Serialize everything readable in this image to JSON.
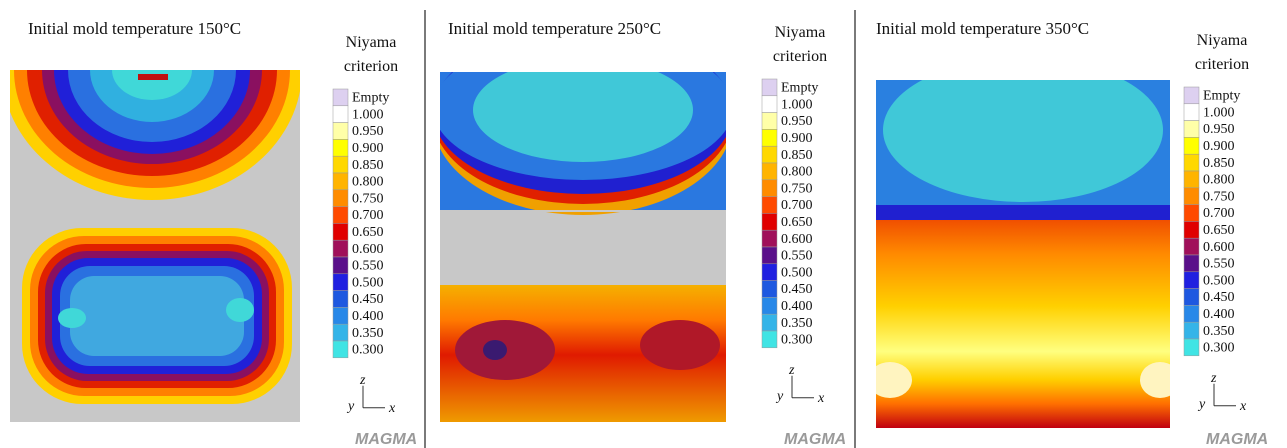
{
  "panels": [
    {
      "title": "Initial mold temperature 150°C",
      "legend": {
        "title_lines": [
          "Niyama",
          "criterion"
        ],
        "labels": [
          "Empty",
          "1.000",
          "0.950",
          "0.900",
          "0.850",
          "0.800",
          "0.750",
          "0.700",
          "0.650",
          "0.600",
          "0.550",
          "0.500",
          "0.450",
          "0.400",
          "0.350",
          "0.300"
        ]
      },
      "axes": {
        "z": "z",
        "y": "y",
        "x": "x"
      },
      "logo": "MAGMA"
    },
    {
      "title": "Initial mold temperature 250°C",
      "legend": {
        "title_lines": [
          "Niyama",
          "criterion"
        ],
        "labels": [
          "Empty",
          "1.000",
          "0.950",
          "0.900",
          "0.850",
          "0.800",
          "0.750",
          "0.700",
          "0.650",
          "0.600",
          "0.550",
          "0.500",
          "0.450",
          "0.400",
          "0.350",
          "0.300"
        ]
      },
      "axes": {
        "z": "z",
        "y": "y",
        "x": "x"
      },
      "logo": "MAGMA"
    },
    {
      "title": "Initial mold temperature 350°C",
      "legend": {
        "title_lines": [
          "Niyama",
          "criterion"
        ],
        "labels": [
          "Empty",
          "1.000",
          "0.950",
          "0.900",
          "0.850",
          "0.800",
          "0.750",
          "0.700",
          "0.650",
          "0.600",
          "0.550",
          "0.500",
          "0.450",
          "0.400",
          "0.350",
          "0.300"
        ]
      },
      "axes": {
        "z": "z",
        "y": "y",
        "x": "x"
      },
      "logo": "MAGMA"
    }
  ]
}
